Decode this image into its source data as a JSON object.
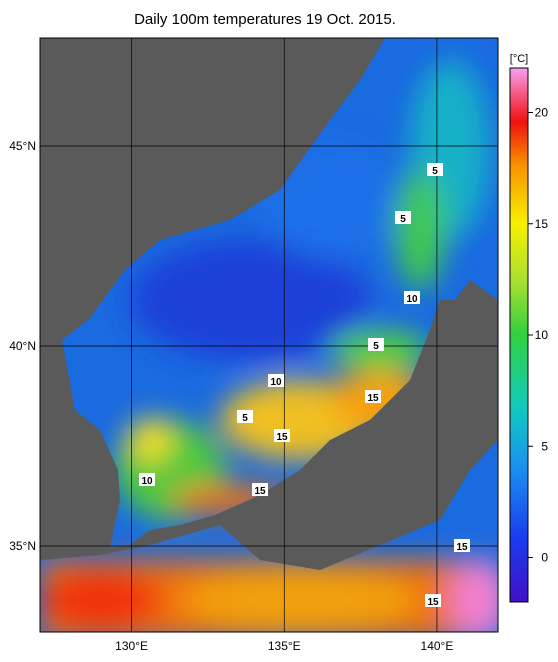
{
  "title": "Daily 100m temperatures 19 Oct. 2015.",
  "map": {
    "lonlim": [
      127,
      142
    ],
    "latlim": [
      32.85,
      47.7
    ],
    "xticks": [
      {
        "value": 130,
        "label": "130°E"
      },
      {
        "value": 135,
        "label": "135°E"
      },
      {
        "value": 140,
        "label": "140°E"
      }
    ],
    "yticks": [
      {
        "value": 45,
        "label": "45°N"
      },
      {
        "value": 40,
        "label": "40°N"
      },
      {
        "value": 35,
        "label": "35°N"
      }
    ]
  },
  "colorbar": {
    "unit": "[°C]",
    "range": [
      -2,
      22
    ],
    "ticks": [
      0,
      5,
      10,
      15,
      20
    ]
  },
  "contour_labels": [
    "5",
    "5",
    "10",
    "5",
    "10",
    "15",
    "5",
    "15",
    "10",
    "15",
    "15",
    "15"
  ]
}
